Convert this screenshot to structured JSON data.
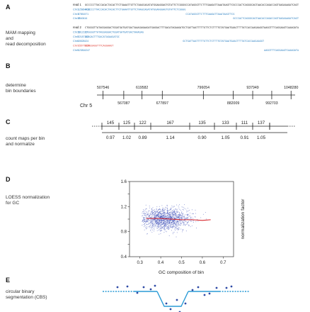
{
  "panels": {
    "A": {
      "letter": "A",
      "label": "MAM mapping\nand\nread decomposition",
      "read1": {
        "name": "read 1",
        "sequence": "GCCCCCTTACCACACTACACTTCTGAAATTGTTCTAAGCAGATATGGAAGGAGTGTATTCTCGGGGCCATAGGGTTCTTTGAAGATTAAATAAGTTCGCCCACTCAGGGCAGTAACACCAGACCAGTGAGAAAGATCAGT",
        "alignments": [
          {
            "chr": "Chr1",
            "pos": "125864418",
            "seq": "GCCCCCTTACCACACTACACTTCTGAAATTGTTCTAAGCAGATATGGAAGGAGTGTATTCTCGGGG",
            "color": "#2a7fc1"
          },
          {
            "chr": "Chr1",
            "pos": "87851571",
            "seq": "CCATAGGGTTCTTTGAAGATTAAATAAGTTCG",
            "color": "#2a7fc1"
          },
          {
            "chr": "Chr17",
            "pos": "8540616",
            "seq": "GCCCACTCAGGGCAGTAACACCAGACCAGTGAGAAAGATCAGT",
            "color": "#2a7fc1"
          }
        ]
      },
      "read2": {
        "name": "read 2",
        "sequence": "CTGGGGTTATAGGAGGACTGGATGATGATGACTAAAGAGAAGATGAGGACTTTGACATAGAAGATGCTGATTAATTTTTGTTCTCTTTTGTATGAATGAACTTTTATCACCAAGAAGGTAAGGTTTCAGGAAGTCAAAGATA",
        "alignments": [
          {
            "chr": "Chr11",
            "pos": "6912133",
            "seq": "CTGGGGTTATAGGAGGACTGGATGATGATGACTAAAGAG",
            "color": "#2a7fc1"
          },
          {
            "chr": "Chr5",
            "pos": "22187167",
            "seq": "GGAGACTTTGACATAGAAGATGC",
            "color": "#2a7fc1"
          },
          {
            "chr": "Chr6",
            "pos": "15528424",
            "seq": "GCTGATTAATTTTTGTTCTCTTTTGTATGAATGAACTTTTATCACCAAGAAGGT",
            "color": "#2a7fc1"
          },
          {
            "chr": "Chr7",
            "pos": "155775659",
            "seq": "CCAGGAGGTTTCAGGAAGT",
            "color": "#e0443a"
          },
          {
            "chr": "Chr9",
            "pos": "123816247",
            "seq": "AAGGTTTCAGGAAGTCAAAGATA",
            "color": "#2a7fc1"
          }
        ]
      }
    },
    "B": {
      "letter": "B",
      "label": "determine\nbin boundaries",
      "chromosome": "Chr 5",
      "top_boundaries": [
        "507546",
        "619582",
        "796054",
        "937949",
        "1048280"
      ],
      "bottom_boundaries": [
        "567087",
        "677897",
        "882009",
        "992703"
      ]
    },
    "C": {
      "letter": "C",
      "label": "count maps per bin\nand normalize",
      "counts": [
        "145",
        "125",
        "122",
        "167",
        "135",
        "133",
        "111",
        "137"
      ],
      "factors": [
        "0.97",
        "1.02",
        "0.89",
        "1.14",
        "0.90",
        "1.05",
        "0.91",
        "1.05"
      ]
    },
    "D": {
      "letter": "D",
      "label": "LOESS normalization\nfor GC",
      "chart_data": {
        "type": "scatter",
        "title": "",
        "xlabel": "GC composition of bin",
        "ylabel": "normalization factor",
        "xlim": [
          0.25,
          0.75
        ],
        "ylim": [
          0.4,
          1.6
        ],
        "xticks": [
          "0.3",
          "0.4",
          "0.5",
          "0.6",
          "0.7"
        ],
        "yticks": [
          "0.4",
          "0.6",
          "0.8",
          "1.0",
          "1.2",
          "1.4",
          "1.6"
        ],
        "point_color": "#3d4fb8",
        "fit_color": "#d8262c",
        "point_cloud": {
          "x_center": 0.42,
          "x_spread": 0.06,
          "y_center": 1.0,
          "y_spread": 0.09
        },
        "loess_fit": {
          "x": [
            0.33,
            0.4,
            0.45,
            0.5,
            0.55,
            0.6,
            0.64
          ],
          "y": [
            1.01,
            1.01,
            1.0,
            0.99,
            0.99,
            0.98,
            0.99
          ]
        },
        "grid": false
      }
    },
    "E": {
      "letter": "E",
      "label": "circular binary\nsegmentation (CBS)",
      "colors": {
        "line": "#2a9bd6",
        "points": "#2d4aa6"
      }
    }
  }
}
